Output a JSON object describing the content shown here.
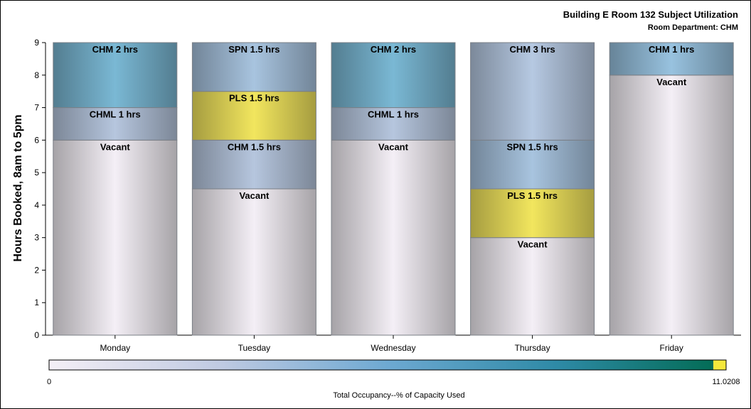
{
  "chart_data": {
    "type": "bar",
    "stacked": true,
    "title": "Building E Room 132 Subject Utilization",
    "subtitle": "Room Department: CHM",
    "ylabel": "Hours Booked, 8am to 5pm",
    "xlabel": "",
    "ylim": [
      0,
      9
    ],
    "yticks": [
      0,
      1,
      2,
      3,
      4,
      5,
      6,
      7,
      8,
      9
    ],
    "categories": [
      "Monday",
      "Tuesday",
      "Wednesday",
      "Thursday",
      "Friday"
    ],
    "bars": [
      {
        "day": "Monday",
        "segments": [
          {
            "label": "Vacant",
            "hours": 6,
            "color": "#f4eff6"
          },
          {
            "label": "CHML 1 hrs",
            "hours": 1,
            "color": "#b6c6de"
          },
          {
            "label": "CHM 2 hrs",
            "hours": 2,
            "color": "#7ab8d4"
          }
        ]
      },
      {
        "day": "Tuesday",
        "segments": [
          {
            "label": "Vacant",
            "hours": 4.5,
            "color": "#f4eff6"
          },
          {
            "label": "CHM 1.5 hrs",
            "hours": 1.5,
            "color": "#b6c6de"
          },
          {
            "label": "PLS 1.5 hrs",
            "hours": 1.5,
            "color": "#f2e65e"
          },
          {
            "label": "SPN 1.5 hrs",
            "hours": 1.5,
            "color": "#a8c4df"
          }
        ]
      },
      {
        "day": "Wednesday",
        "segments": [
          {
            "label": "Vacant",
            "hours": 6,
            "color": "#f4eff6"
          },
          {
            "label": "CHML 1 hrs",
            "hours": 1,
            "color": "#b6c6de"
          },
          {
            "label": "CHM 2 hrs",
            "hours": 2,
            "color": "#7ab8d4"
          }
        ]
      },
      {
        "day": "Thursday",
        "segments": [
          {
            "label": "Vacant",
            "hours": 3,
            "color": "#f4eff6"
          },
          {
            "label": "PLS 1.5 hrs",
            "hours": 1.5,
            "color": "#f2e65e"
          },
          {
            "label": "SPN 1.5 hrs",
            "hours": 1.5,
            "color": "#a8c4df"
          },
          {
            "label": "CHM 3 hrs",
            "hours": 3,
            "color": "#b6c9e2"
          }
        ]
      },
      {
        "day": "Friday",
        "segments": [
          {
            "label": "Vacant",
            "hours": 8,
            "color": "#f4eff6"
          },
          {
            "label": "CHM 1 hrs",
            "hours": 1,
            "color": "#98c2df"
          }
        ]
      }
    ],
    "colorbar": {
      "label": "Total Occupancy--% of Capacity Used",
      "min_label": "0",
      "max_label": "11.0208",
      "min": 0,
      "max": 11.0208,
      "gradient": [
        "#f4eff6",
        "#c0cae2",
        "#6ea9d2",
        "#2e8aa6",
        "#006a50"
      ],
      "marker_color": "#f5e83c"
    },
    "grid": false,
    "legend": "bottom"
  }
}
